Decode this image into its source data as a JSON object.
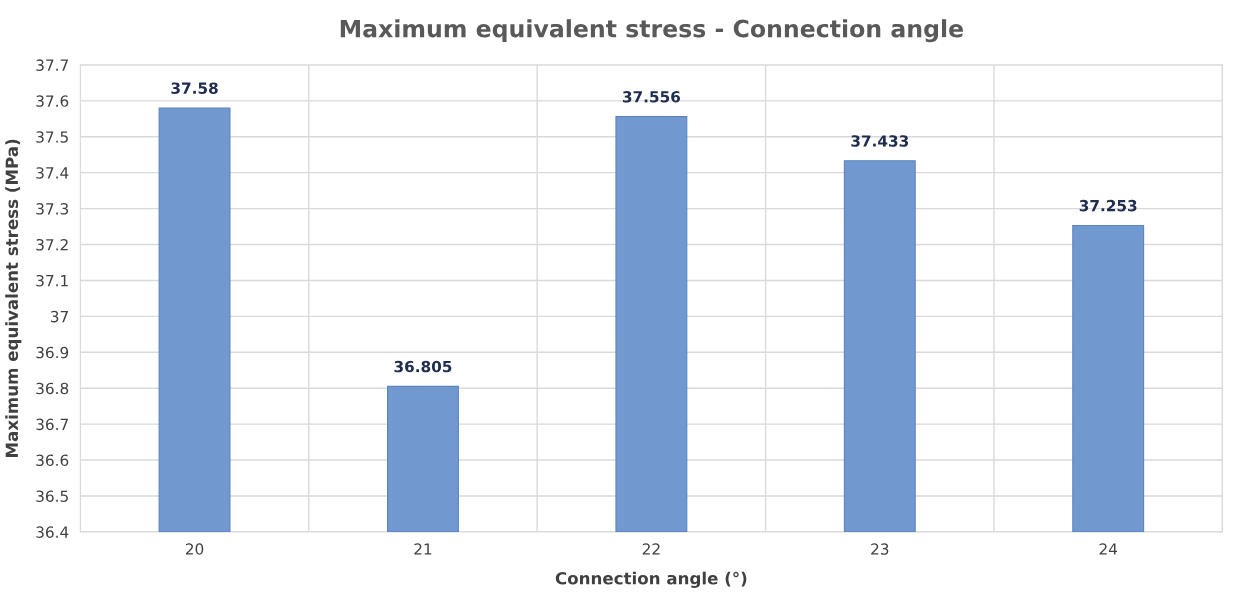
{
  "chart_data": {
    "type": "bar",
    "title": "Maximum equivalent stress - Connection angle",
    "xlabel": "Connection angle (°)",
    "ylabel": "Maximum equivalent stress (MPa)",
    "categories": [
      "20",
      "21",
      "22",
      "23",
      "24"
    ],
    "values": [
      37.58,
      36.805,
      37.556,
      37.433,
      37.253
    ],
    "color": "#7199d0",
    "ylim": [
      36.4,
      37.7
    ],
    "yticks": [
      36.4,
      36.5,
      36.6,
      36.7,
      36.8,
      36.9,
      37,
      37.1,
      37.2,
      37.3,
      37.4,
      37.5,
      37.6,
      37.7
    ],
    "grid": true,
    "data_labels": true
  }
}
